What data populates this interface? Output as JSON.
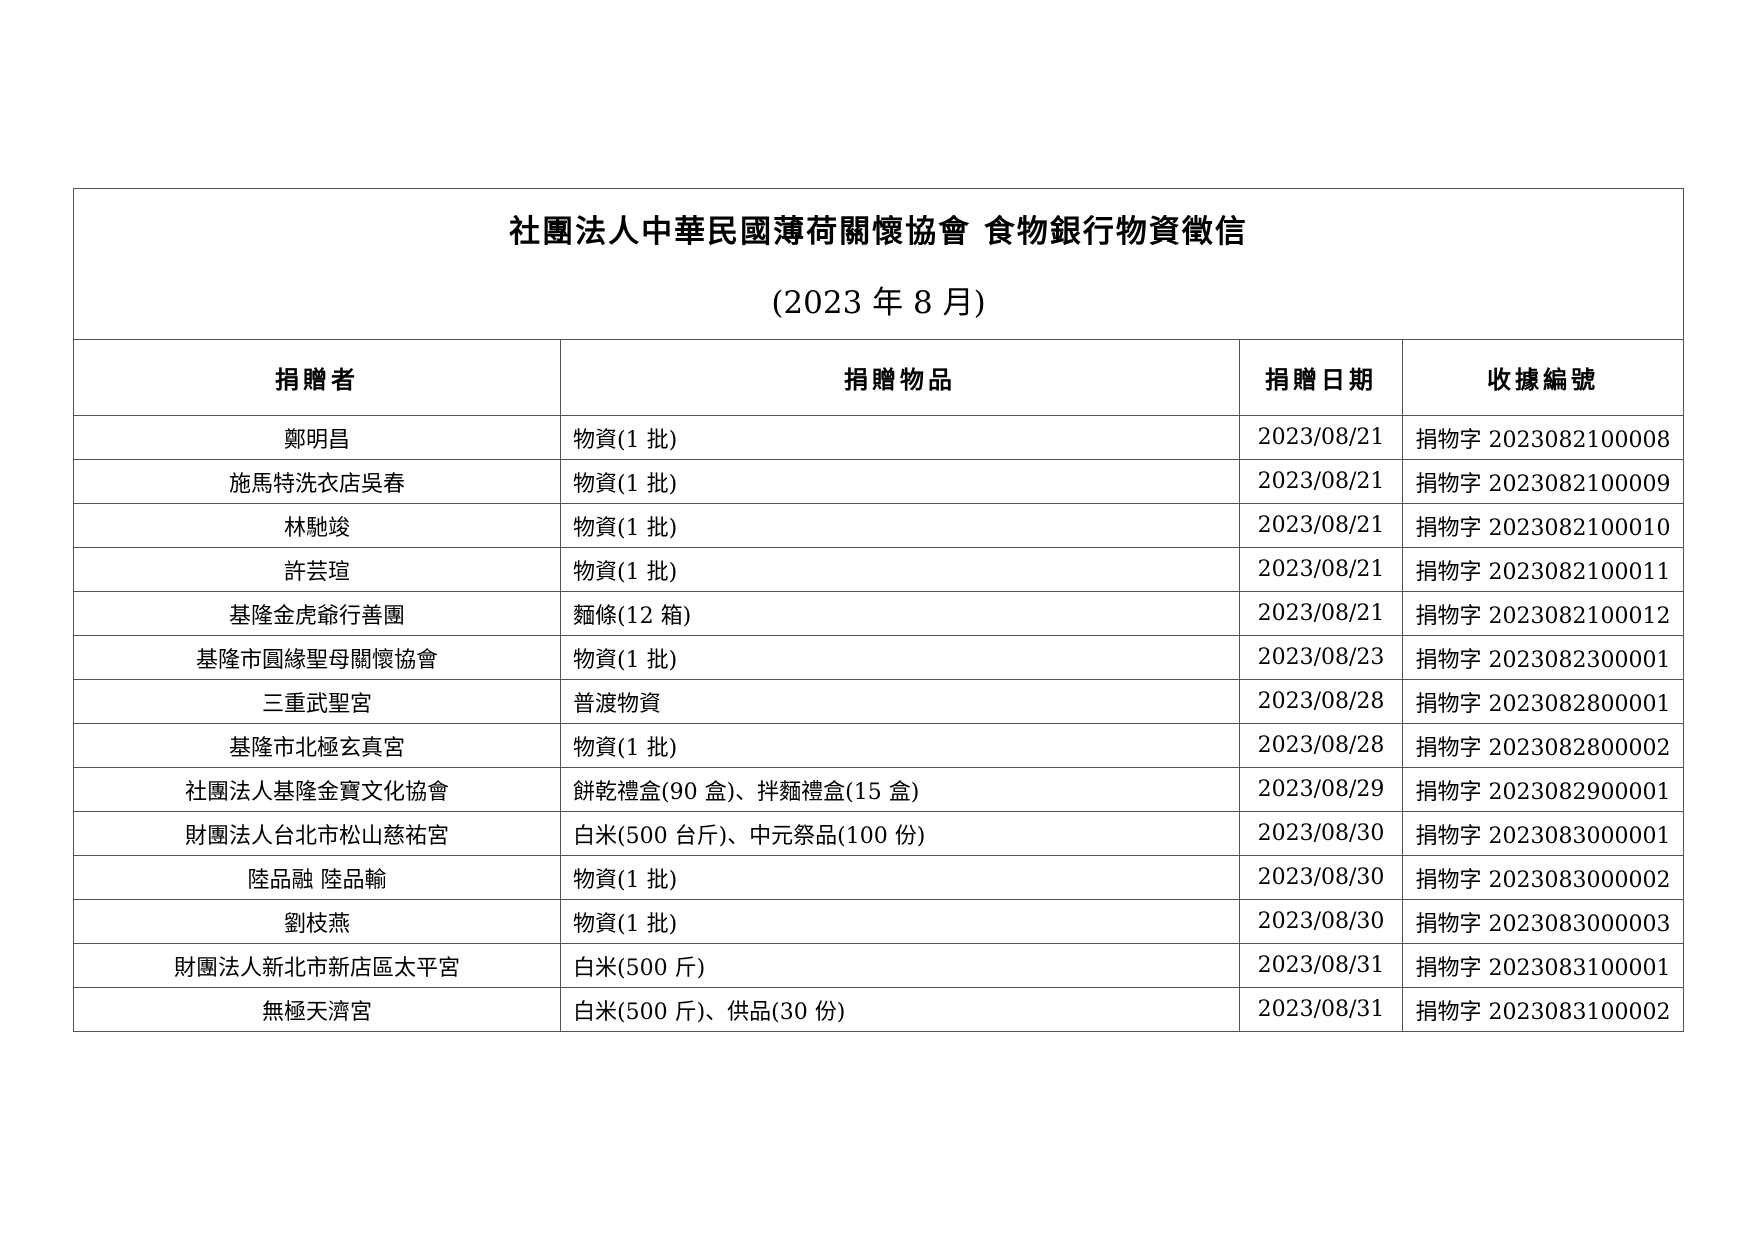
{
  "title": "社團法人中華民國薄荷關懷協會 食物銀行物資徵信",
  "subtitle": "(2023 年 8 月)",
  "columns": [
    "捐贈者",
    "捐贈物品",
    "捐贈日期",
    "收據編號"
  ],
  "rows": [
    {
      "donor": "鄭明昌",
      "items": "物資(1 批)",
      "date": "2023/08/21",
      "receipt": "捐物字 2023082100008"
    },
    {
      "donor": "施馬特洗衣店吳春",
      "items": "物資(1 批)",
      "date": "2023/08/21",
      "receipt": "捐物字 2023082100009"
    },
    {
      "donor": "林馳竣",
      "items": "物資(1 批)",
      "date": "2023/08/21",
      "receipt": "捐物字 2023082100010"
    },
    {
      "donor": "許芸瑄",
      "items": "物資(1 批)",
      "date": "2023/08/21",
      "receipt": "捐物字 2023082100011"
    },
    {
      "donor": "基隆金虎爺行善團",
      "items": "麵條(12 箱)",
      "date": "2023/08/21",
      "receipt": "捐物字 2023082100012"
    },
    {
      "donor": "基隆市圓緣聖母關懷協會",
      "items": "物資(1 批)",
      "date": "2023/08/23",
      "receipt": "捐物字 2023082300001"
    },
    {
      "donor": "三重武聖宮",
      "items": "普渡物資",
      "date": "2023/08/28",
      "receipt": "捐物字 2023082800001"
    },
    {
      "donor": "基隆市北極玄真宮",
      "items": "物資(1 批)",
      "date": "2023/08/28",
      "receipt": "捐物字 2023082800002"
    },
    {
      "donor": "社團法人基隆金寶文化協會",
      "items": "餅乾禮盒(90 盒)、拌麵禮盒(15 盒)",
      "date": "2023/08/29",
      "receipt": "捐物字 2023082900001"
    },
    {
      "donor": "財團法人台北市松山慈祐宮",
      "items": "白米(500 台斤)、中元祭品(100 份)",
      "date": "2023/08/30",
      "receipt": "捐物字 2023083000001"
    },
    {
      "donor": "陸品融 陸品輸",
      "items": "物資(1 批)",
      "date": "2023/08/30",
      "receipt": "捐物字 2023083000002"
    },
    {
      "donor": "劉枝燕",
      "items": "物資(1 批)",
      "date": "2023/08/30",
      "receipt": "捐物字 2023083000003"
    },
    {
      "donor": "財團法人新北市新店區太平宮",
      "items": "白米(500 斤)",
      "date": "2023/08/31",
      "receipt": "捐物字 2023083100001"
    },
    {
      "donor": "無極天濟宮",
      "items": "白米(500 斤)、供品(30 份)",
      "date": "2023/08/31",
      "receipt": "捐物字 2023083100002"
    }
  ]
}
